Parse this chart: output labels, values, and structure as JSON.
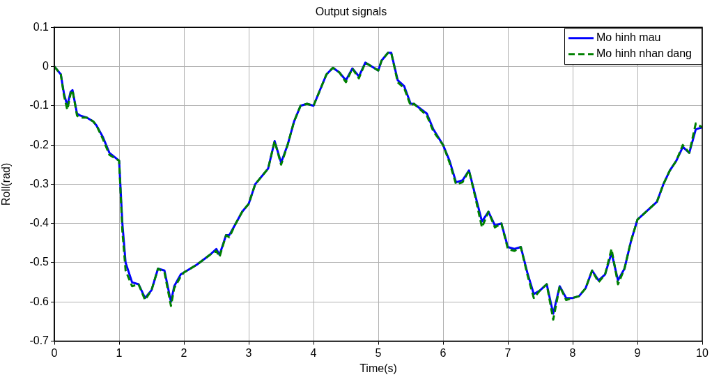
{
  "chart_data": {
    "type": "line",
    "title": "Output signals",
    "xlabel": "Time(s)",
    "ylabel": "Roll(rad)",
    "xlim": [
      0,
      10
    ],
    "xticks": [
      0,
      1,
      2,
      3,
      4,
      5,
      6,
      7,
      8,
      9,
      10
    ],
    "ylim": [
      -0.7,
      0.1
    ],
    "yticks": [
      -0.7,
      -0.6,
      -0.5,
      -0.4,
      -0.3,
      -0.2,
      -0.1,
      0,
      0.1
    ],
    "grid": true,
    "legend": "top right",
    "marker": "none",
    "x": [
      0,
      0.1,
      0.15,
      0.2,
      0.25,
      0.28,
      0.35,
      0.4,
      0.5,
      0.6,
      0.65,
      0.75,
      0.85,
      1.0,
      1.05,
      1.1,
      1.2,
      1.3,
      1.4,
      1.5,
      1.6,
      1.7,
      1.8,
      1.85,
      1.95,
      2.0,
      2.2,
      2.4,
      2.5,
      2.55,
      2.65,
      2.7,
      2.8,
      2.9,
      3.0,
      3.1,
      3.3,
      3.4,
      3.5,
      3.6,
      3.7,
      3.8,
      3.9,
      4.0,
      4.1,
      4.2,
      4.3,
      4.4,
      4.5,
      4.6,
      4.7,
      4.8,
      4.9,
      5.0,
      5.05,
      5.15,
      5.2,
      5.3,
      5.4,
      5.5,
      5.55,
      5.75,
      5.85,
      6.0,
      6.1,
      6.2,
      6.3,
      6.4,
      6.5,
      6.6,
      6.7,
      6.8,
      6.9,
      7.0,
      7.1,
      7.2,
      7.3,
      7.4,
      7.5,
      7.6,
      7.7,
      7.8,
      7.9,
      8.0,
      8.1,
      8.2,
      8.3,
      8.4,
      8.5,
      8.6,
      8.7,
      8.8,
      8.9,
      9.0,
      9.2,
      9.3,
      9.4,
      9.5,
      9.6,
      9.7,
      9.8,
      9.9,
      10
    ],
    "series": [
      {
        "name": "Mo hinh mau",
        "color": "#0000ff",
        "line_style": "solid",
        "values": [
          0,
          -0.02,
          -0.07,
          -0.1,
          -0.065,
          -0.06,
          -0.12,
          -0.125,
          -0.13,
          -0.14,
          -0.15,
          -0.18,
          -0.22,
          -0.24,
          -0.4,
          -0.5,
          -0.55,
          -0.555,
          -0.59,
          -0.57,
          -0.515,
          -0.52,
          -0.6,
          -0.56,
          -0.53,
          -0.525,
          -0.505,
          -0.48,
          -0.465,
          -0.48,
          -0.43,
          -0.43,
          -0.4,
          -0.37,
          -0.35,
          -0.3,
          -0.26,
          -0.19,
          -0.245,
          -0.2,
          -0.14,
          -0.1,
          -0.095,
          -0.1,
          -0.06,
          -0.02,
          -0.003,
          -0.015,
          -0.035,
          -0.005,
          -0.025,
          0.01,
          0,
          -0.01,
          0.015,
          0.035,
          0.035,
          -0.035,
          -0.05,
          -0.095,
          -0.095,
          -0.12,
          -0.16,
          -0.2,
          -0.24,
          -0.295,
          -0.29,
          -0.265,
          -0.33,
          -0.395,
          -0.37,
          -0.405,
          -0.4,
          -0.46,
          -0.465,
          -0.46,
          -0.525,
          -0.58,
          -0.57,
          -0.555,
          -0.63,
          -0.56,
          -0.59,
          -0.59,
          -0.585,
          -0.565,
          -0.52,
          -0.545,
          -0.53,
          -0.475,
          -0.545,
          -0.515,
          -0.445,
          -0.39,
          -0.36,
          -0.345,
          -0.3,
          -0.265,
          -0.24,
          -0.205,
          -0.22,
          -0.16,
          -0.155
        ]
      },
      {
        "name": "Mo hinh nhan dang",
        "color": "#008000",
        "line_style": "dashed",
        "values": [
          0,
          -0.02,
          -0.075,
          -0.11,
          -0.07,
          -0.06,
          -0.125,
          -0.13,
          -0.13,
          -0.14,
          -0.15,
          -0.185,
          -0.225,
          -0.24,
          -0.42,
          -0.52,
          -0.56,
          -0.555,
          -0.595,
          -0.57,
          -0.515,
          -0.525,
          -0.61,
          -0.565,
          -0.535,
          -0.525,
          -0.505,
          -0.48,
          -0.47,
          -0.485,
          -0.43,
          -0.435,
          -0.4,
          -0.37,
          -0.35,
          -0.3,
          -0.26,
          -0.19,
          -0.25,
          -0.2,
          -0.14,
          -0.1,
          -0.095,
          -0.1,
          -0.06,
          -0.02,
          -0.003,
          -0.015,
          -0.04,
          -0.005,
          -0.03,
          0.01,
          0,
          -0.01,
          0.015,
          0.035,
          0.035,
          -0.04,
          -0.055,
          -0.1,
          -0.095,
          -0.125,
          -0.165,
          -0.2,
          -0.245,
          -0.3,
          -0.295,
          -0.265,
          -0.335,
          -0.41,
          -0.37,
          -0.41,
          -0.4,
          -0.465,
          -0.47,
          -0.46,
          -0.53,
          -0.59,
          -0.57,
          -0.555,
          -0.645,
          -0.56,
          -0.595,
          -0.59,
          -0.585,
          -0.565,
          -0.52,
          -0.55,
          -0.53,
          -0.465,
          -0.555,
          -0.515,
          -0.445,
          -0.39,
          -0.36,
          -0.345,
          -0.3,
          -0.265,
          -0.24,
          -0.2,
          -0.22,
          -0.145,
          -0.155
        ]
      }
    ]
  }
}
